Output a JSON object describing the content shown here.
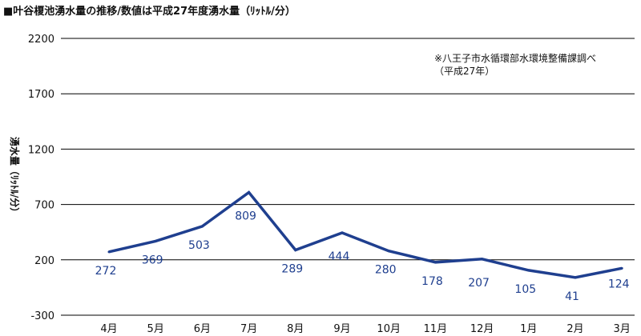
{
  "chart_data": {
    "type": "line",
    "title": "■叶谷榎池湧水量の推移/数値は平成27年度湧水量（ﾘｯﾄﾙ/分）",
    "ylabel": "湧水量（ﾘｯﾄﾙ/分）",
    "xlabel": "",
    "categories": [
      "4月",
      "5月",
      "6月",
      "7月",
      "8月",
      "9月",
      "10月",
      "11月",
      "12月",
      "1月",
      "2月",
      "3月"
    ],
    "series": [
      {
        "values": [
          272,
          369,
          503,
          809,
          289,
          444,
          280,
          178,
          207,
          105,
          41,
          124
        ],
        "color": "#1f3f8f"
      }
    ],
    "ylim": [
      -300,
      2200
    ],
    "yticks": [
      -300,
      200,
      700,
      1200,
      1700,
      2200
    ],
    "grid": true,
    "annotation": [
      "※八王子市水循環部水環境整備課調べ",
      "（平成27年）"
    ]
  }
}
